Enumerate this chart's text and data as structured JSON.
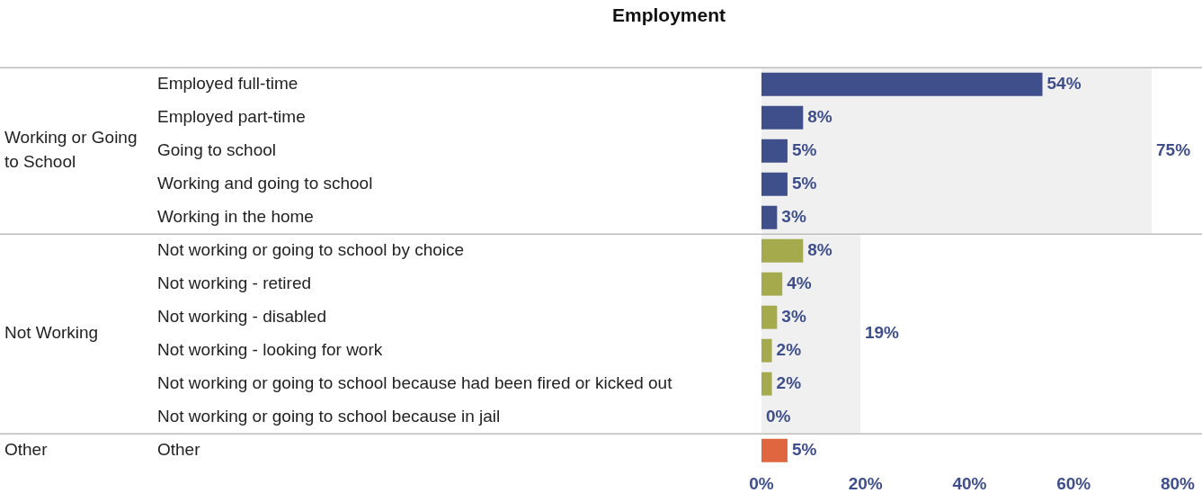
{
  "chart_data": {
    "type": "bar",
    "orientation": "horizontal",
    "title": "Employment",
    "categories": [
      "Employed full-time",
      "Employed part-time",
      "Going to school",
      "Working and going to school",
      "Working in the home",
      "Not working or going to school by choice",
      "Not working - retired",
      "Not working - disabled",
      "Not working - looking for work",
      "Not working or going to school because had been fired or kicked out",
      "Not working or going to school because in jail",
      "Other"
    ],
    "series": [
      {
        "colors": [
          "#3f4f8c",
          "#3f4f8c",
          "#3f4f8c",
          "#3f4f8c",
          "#3f4f8c",
          "#a5aa4c",
          "#a5aa4c",
          "#a5aa4c",
          "#a5aa4c",
          "#a5aa4c",
          "#a5aa4c",
          "#e0663f"
        ],
        "values": [
          54,
          8,
          5,
          5,
          3,
          8,
          4,
          3,
          2,
          2,
          0,
          5
        ],
        "value_labels": [
          "54%",
          "8%",
          "5%",
          "5%",
          "3%",
          "8%",
          "4%",
          "3%",
          "2%",
          "2%",
          "0%",
          "5%"
        ]
      }
    ],
    "bands": [
      {
        "axis": "x",
        "from": 0,
        "to": 75,
        "label": "75%",
        "color": "#f0f0f0"
      },
      {
        "axis": "x",
        "from": 0,
        "to": 19,
        "label": "19%",
        "color": "#f0f0f0"
      }
    ],
    "annotations": [
      "Working or Going to School",
      "Not Working",
      "Other"
    ],
    "xlim": [
      0,
      80
    ],
    "xticks": [
      {
        "value": 0,
        "label": "0%"
      },
      {
        "value": 20,
        "label": "20%"
      },
      {
        "value": 40,
        "label": "40%"
      },
      {
        "value": 60,
        "label": "60%"
      },
      {
        "value": 80,
        "label": "80%"
      }
    ],
    "grid": false,
    "legend": false
  }
}
